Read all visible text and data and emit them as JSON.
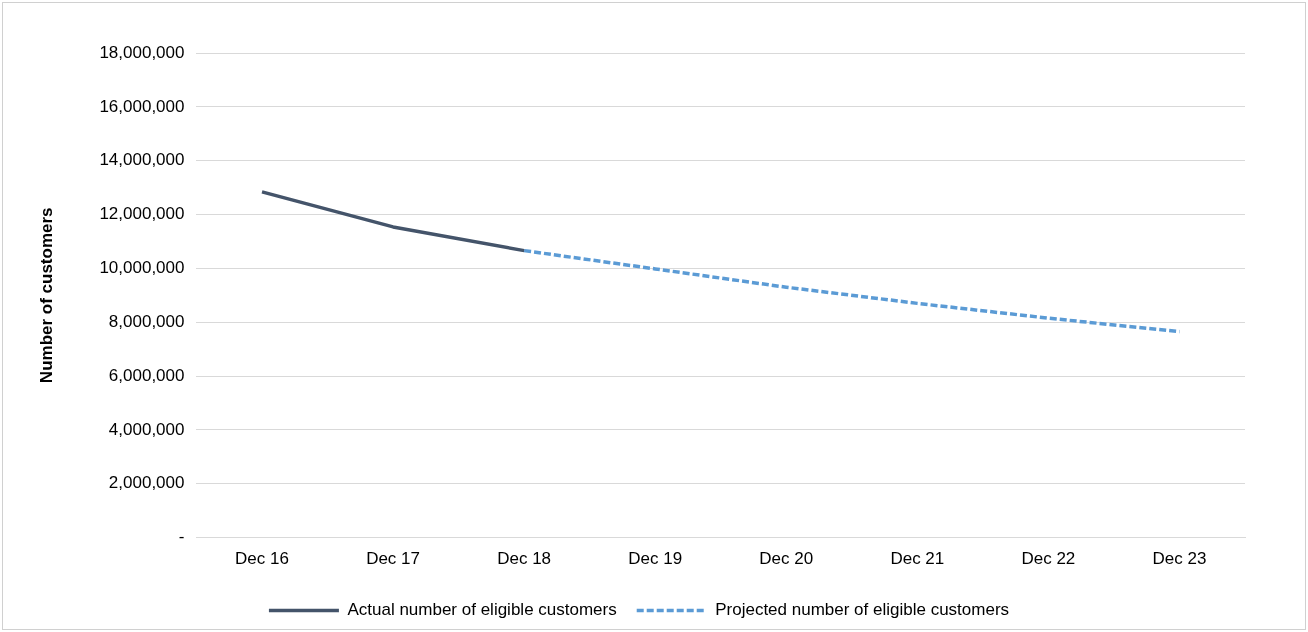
{
  "chart_data": {
    "type": "line",
    "ylabel": "Number of customers",
    "categories": [
      "Dec 16",
      "Dec 17",
      "Dec 18",
      "Dec 19",
      "Dec 20",
      "Dec 21",
      "Dec 22",
      "Dec 23"
    ],
    "series": [
      {
        "name": "Actual number of eligible customers",
        "color": "#44546a",
        "line_style": "solid",
        "values": [
          12840000,
          11540000,
          10660000,
          null,
          null,
          null,
          null,
          null
        ]
      },
      {
        "name": "Projected number of eligible customers",
        "color": "#5b9bd5",
        "line_style": "dashed",
        "values": [
          null,
          null,
          10660000,
          9980000,
          9300000,
          8700000,
          8150000,
          7650000
        ]
      }
    ],
    "ylim": [
      0,
      18000000
    ],
    "yticks": [
      {
        "value": 0,
        "label": "-"
      },
      {
        "value": 2000000,
        "label": "2,000,000"
      },
      {
        "value": 4000000,
        "label": "4,000,000"
      },
      {
        "value": 6000000,
        "label": "6,000,000"
      },
      {
        "value": 8000000,
        "label": "8,000,000"
      },
      {
        "value": 10000000,
        "label": "10,000,000"
      },
      {
        "value": 12000000,
        "label": "12,000,000"
      },
      {
        "value": 14000000,
        "label": "14,000,000"
      },
      {
        "value": 16000000,
        "label": "16,000,000"
      },
      {
        "value": 18000000,
        "label": "18,000,000"
      }
    ],
    "grid": "y",
    "legend": "bottom",
    "marker": "none"
  }
}
